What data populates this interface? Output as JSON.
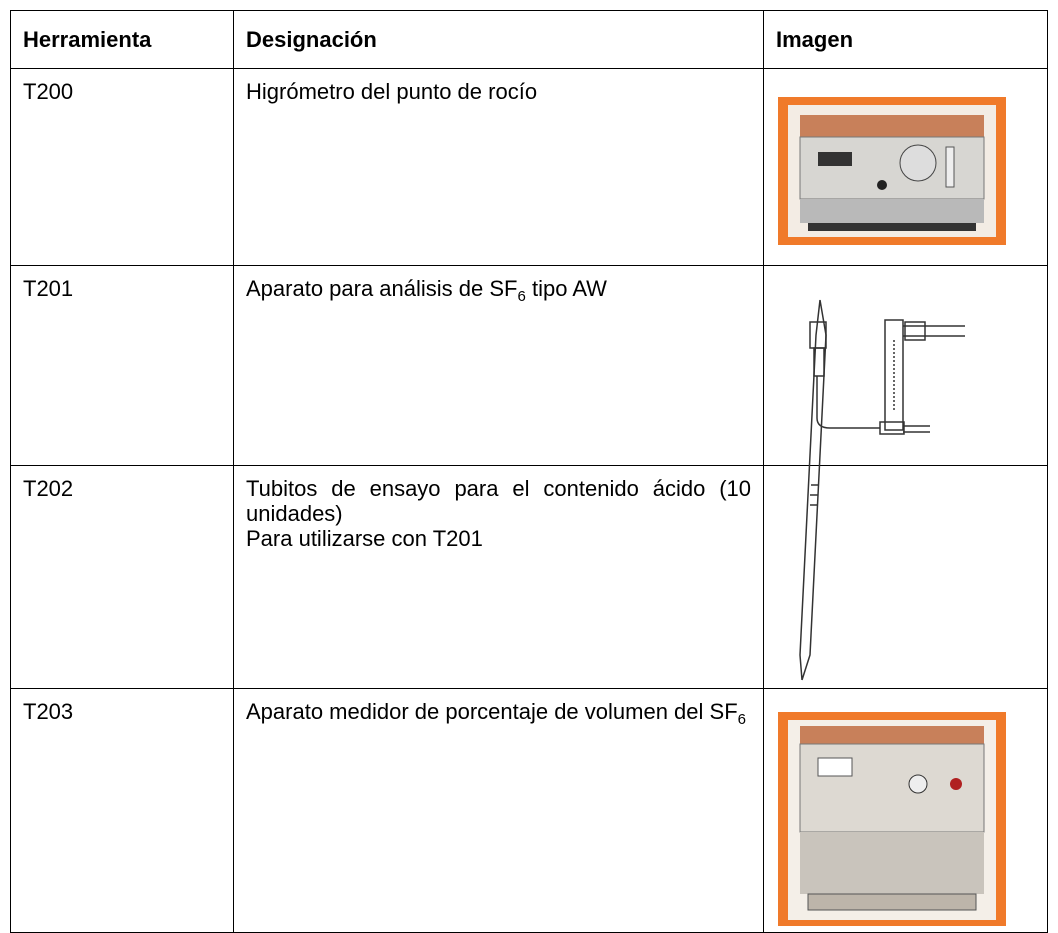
{
  "table": {
    "header": [
      "Herramienta",
      "Designación",
      "Imagen"
    ],
    "rows": [
      {
        "tool": "T200",
        "designation": [
          [
            {
              "text": "Higrómetro del punto de rocío"
            }
          ]
        ]
      },
      {
        "tool": "T201",
        "designation": [
          [
            {
              "text": "Aparato para análisis de SF"
            },
            {
              "sub": "6"
            },
            {
              "text": " tipo AW"
            }
          ]
        ]
      },
      {
        "tool": "T202",
        "designation": [
          [
            {
              "text": "Tubitos de ensayo para el contenido ácido (10 unidades)"
            }
          ],
          [
            {
              "text": "Para utilizarse con T201"
            }
          ]
        ]
      },
      {
        "tool": "T203",
        "designation": [
          [
            {
              "text": "Aparato medidor de porcentaje de volumen del SF"
            },
            {
              "sub": "6"
            }
          ]
        ]
      }
    ]
  }
}
